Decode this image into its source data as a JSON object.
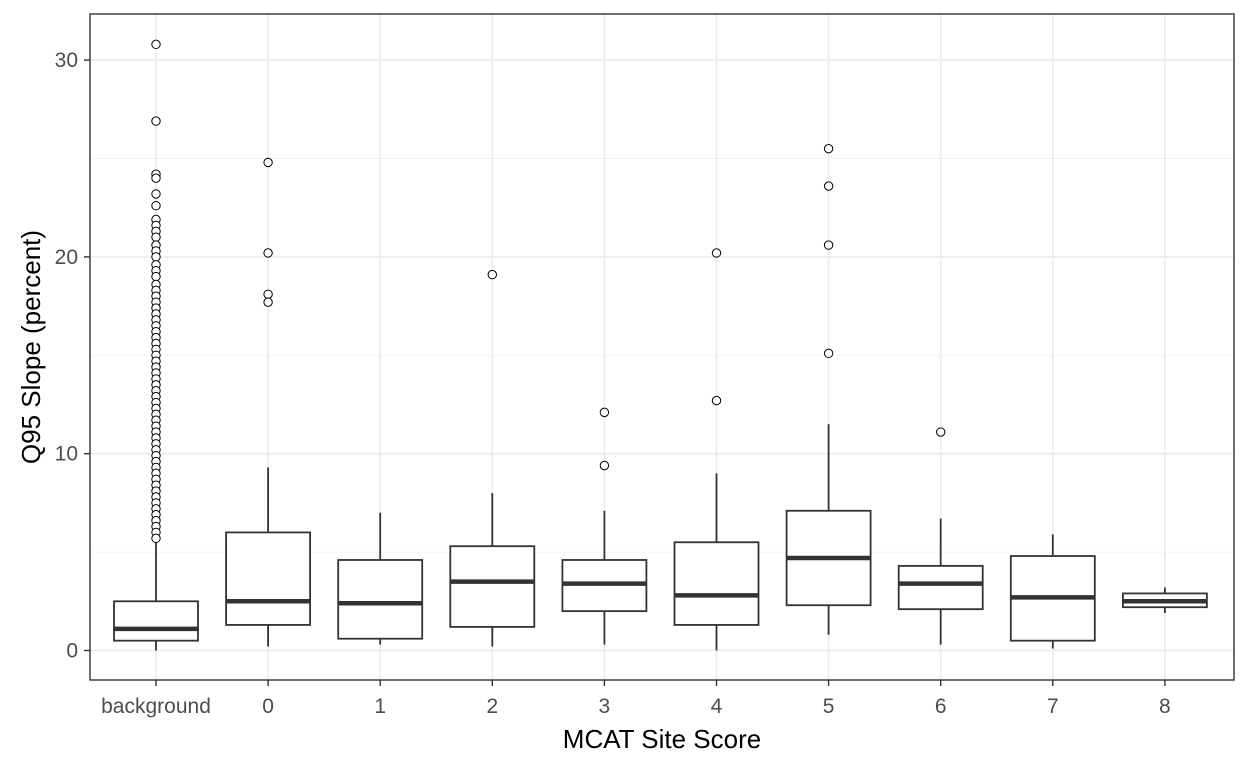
{
  "chart_data": {
    "type": "boxplot",
    "title": "",
    "xlabel": "MCAT Site Score",
    "ylabel": "Q95 Slope (percent)",
    "ylim": [
      -1.5,
      32.5
    ],
    "yticks": [
      0,
      10,
      20,
      30
    ],
    "grid": true,
    "legend": "none",
    "categories": [
      "background",
      "0",
      "1",
      "2",
      "3",
      "4",
      "5",
      "6",
      "7",
      "8"
    ],
    "boxes": [
      {
        "category": "background",
        "lower_whisker": 0.0,
        "q1": 0.5,
        "median": 1.1,
        "q3": 2.5,
        "upper_whisker": 5.5,
        "outliers": [
          30.8,
          26.9,
          24.2,
          24.0,
          23.2,
          22.6,
          21.9,
          21.6,
          21.3,
          21.0,
          20.6,
          20.3,
          20.0,
          19.6,
          19.3,
          19.0,
          18.6,
          18.3,
          18.0,
          17.7,
          17.4,
          17.1,
          16.8,
          16.5,
          16.2,
          15.9,
          15.6,
          15.3,
          15.0,
          14.7,
          14.4,
          14.1,
          13.8,
          13.5,
          13.2,
          12.9,
          12.6,
          12.3,
          12.0,
          11.7,
          11.4,
          11.1,
          10.8,
          10.5,
          10.2,
          9.9,
          9.6,
          9.3,
          9.0,
          8.7,
          8.4,
          8.1,
          7.8,
          7.5,
          7.2,
          6.9,
          6.6,
          6.3,
          6.0,
          5.7
        ]
      },
      {
        "category": "0",
        "lower_whisker": 0.2,
        "q1": 1.3,
        "median": 2.5,
        "q3": 6.0,
        "upper_whisker": 9.3,
        "outliers": [
          24.8,
          20.2,
          18.1,
          17.7
        ]
      },
      {
        "category": "1",
        "lower_whisker": 0.3,
        "q1": 0.6,
        "median": 2.4,
        "q3": 4.6,
        "upper_whisker": 7.0,
        "outliers": []
      },
      {
        "category": "2",
        "lower_whisker": 0.2,
        "q1": 1.2,
        "median": 3.5,
        "q3": 5.3,
        "upper_whisker": 8.0,
        "outliers": [
          19.1
        ]
      },
      {
        "category": "3",
        "lower_whisker": 0.3,
        "q1": 2.0,
        "median": 3.4,
        "q3": 4.6,
        "upper_whisker": 7.1,
        "outliers": [
          12.1,
          9.4
        ]
      },
      {
        "category": "4",
        "lower_whisker": 0.0,
        "q1": 1.3,
        "median": 2.8,
        "q3": 5.5,
        "upper_whisker": 9.0,
        "outliers": [
          20.2,
          12.7
        ]
      },
      {
        "category": "5",
        "lower_whisker": 0.8,
        "q1": 2.3,
        "median": 4.7,
        "q3": 7.1,
        "upper_whisker": 11.5,
        "outliers": [
          25.5,
          23.6,
          20.6,
          15.1
        ]
      },
      {
        "category": "6",
        "lower_whisker": 0.3,
        "q1": 2.1,
        "median": 3.4,
        "q3": 4.3,
        "upper_whisker": 6.7,
        "outliers": [
          11.1
        ]
      },
      {
        "category": "7",
        "lower_whisker": 0.1,
        "q1": 0.5,
        "median": 2.7,
        "q3": 4.8,
        "upper_whisker": 5.9,
        "outliers": []
      },
      {
        "category": "8",
        "lower_whisker": 1.9,
        "q1": 2.2,
        "median": 2.5,
        "q3": 2.9,
        "upper_whisker": 3.2,
        "outliers": []
      }
    ]
  }
}
